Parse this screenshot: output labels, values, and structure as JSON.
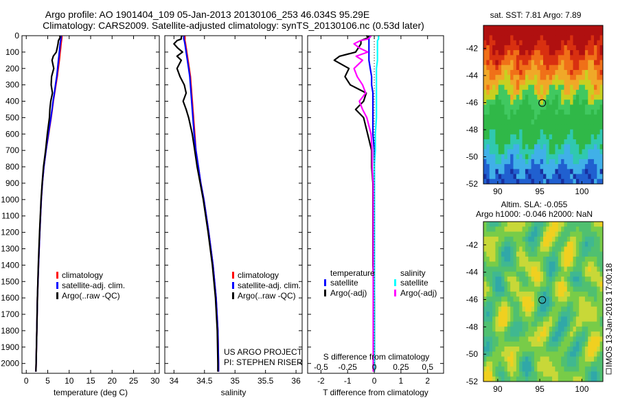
{
  "header": {
    "line1": "Argo profile: AO 1901404_109 05-Jan-2013 20130106_253 46.034S 95.29E",
    "line2": "Climatology: CARS2009. Satellite-adjusted climatology: synTS_20130106.nc (0.53d later)"
  },
  "colors": {
    "climatology": "#ff0000",
    "satellite": "#0000ff",
    "argo": "#000000",
    "sal_satellite": "#00ffff",
    "sal_argo": "#ff00ff"
  },
  "chart_data": [
    {
      "type": "line",
      "id": "temperature",
      "xlabel": "temperature (deg C)",
      "ylabel": "",
      "xlim": [
        -1,
        31
      ],
      "ylim": [
        2060,
        0
      ],
      "x_ticks": [
        "0",
        "5",
        "10",
        "15",
        "20",
        "25",
        "30"
      ],
      "y_ticks": [
        "0",
        "100",
        "200",
        "300",
        "400",
        "500",
        "600",
        "700",
        "800",
        "900",
        "1000",
        "1100",
        "1200",
        "1300",
        "1400",
        "1500",
        "1600",
        "1700",
        "1800",
        "1900",
        "2000"
      ],
      "depth": [
        0,
        10,
        20,
        30,
        50,
        75,
        100,
        125,
        150,
        200,
        250,
        300,
        350,
        400,
        450,
        500,
        600,
        700,
        800,
        900,
        1000,
        1200,
        1400,
        1600,
        1800,
        2000,
        2050
      ],
      "series": [
        {
          "name": "climatology",
          "color": "#ff0000",
          "values": [
            8.3,
            8.3,
            8.25,
            8.2,
            8.1,
            8.0,
            7.9,
            7.8,
            7.7,
            7.45,
            7.2,
            6.9,
            6.6,
            6.3,
            6.05,
            5.8,
            5.2,
            4.6,
            4.1,
            3.75,
            3.5,
            3.15,
            2.85,
            2.6,
            2.45,
            2.3,
            2.25
          ]
        },
        {
          "name": "satellite-adj. clim.",
          "color": "#0000ff",
          "values": [
            8.1,
            8.1,
            8.05,
            8.0,
            7.9,
            7.8,
            7.7,
            7.6,
            7.5,
            7.3,
            7.1,
            6.8,
            6.55,
            6.25,
            6.0,
            5.75,
            5.15,
            4.6,
            4.1,
            3.75,
            3.5,
            3.15,
            2.85,
            2.6,
            2.45,
            2.3,
            2.25
          ]
        },
        {
          "name": "Argo(..raw -QC)",
          "color": "#000000",
          "values": [
            7.8,
            7.9,
            7.7,
            7.5,
            7.4,
            7.2,
            7.0,
            6.3,
            6.0,
            6.4,
            5.9,
            5.8,
            6.1,
            5.7,
            5.5,
            5.4,
            4.9,
            4.5,
            4.0,
            3.7,
            3.45,
            3.1,
            2.8,
            2.6,
            2.45,
            2.3,
            2.25
          ]
        }
      ],
      "legend": {
        "location": "center",
        "entries": [
          "climatology",
          "satellite-adj. clim.",
          "Argo(..raw -QC)"
        ]
      }
    },
    {
      "type": "line",
      "id": "salinity",
      "xlabel": "salinity",
      "ylabel": "",
      "xlim": [
        33.85,
        36.1
      ],
      "ylim": [
        2060,
        0
      ],
      "x_ticks": [
        "34",
        "34.5",
        "35",
        "35.5",
        "36"
      ],
      "depth": [
        0,
        10,
        20,
        30,
        50,
        75,
        100,
        125,
        150,
        200,
        250,
        300,
        350,
        400,
        450,
        500,
        600,
        700,
        800,
        900,
        1000,
        1200,
        1400,
        1600,
        1800,
        2000,
        2050
      ],
      "series": [
        {
          "name": "climatology",
          "color": "#ff0000",
          "values": [
            34.18,
            34.18,
            34.18,
            34.18,
            34.19,
            34.2,
            34.21,
            34.22,
            34.23,
            34.25,
            34.27,
            34.28,
            34.29,
            34.3,
            34.31,
            34.32,
            34.34,
            34.36,
            34.4,
            34.44,
            34.49,
            34.57,
            34.64,
            34.69,
            34.72,
            34.73,
            34.73
          ]
        },
        {
          "name": "satellite-adj. clim.",
          "color": "#0000ff",
          "values": [
            34.16,
            34.16,
            34.16,
            34.17,
            34.18,
            34.19,
            34.2,
            34.21,
            34.22,
            34.24,
            34.26,
            34.27,
            34.28,
            34.29,
            34.3,
            34.31,
            34.33,
            34.36,
            34.4,
            34.44,
            34.49,
            34.57,
            34.64,
            34.69,
            34.72,
            34.73,
            34.73
          ]
        },
        {
          "name": "Argo(..raw -QC)",
          "color": "#000000",
          "values": [
            34.13,
            34.12,
            34.12,
            34.05,
            34.0,
            34.06,
            34.14,
            34.05,
            34.12,
            34.05,
            34.1,
            34.17,
            34.2,
            34.15,
            34.2,
            34.24,
            34.3,
            34.34,
            34.38,
            34.43,
            34.48,
            34.56,
            34.63,
            34.68,
            34.71,
            34.72,
            34.72
          ]
        }
      ],
      "legend": {
        "location": "center",
        "entries": [
          "climatology",
          "satellite-adj. clim.",
          "Argo(..raw -QC)"
        ]
      },
      "annotation": [
        "US ARGO PROJECT",
        "PI: STEPHEN RISER"
      ]
    },
    {
      "type": "line",
      "id": "difference",
      "xlabel": "T difference from climatology",
      "top_label": "S difference from climatology",
      "xlim": [
        -2.5,
        2.6
      ],
      "ylim": [
        2060,
        0
      ],
      "x_ticks": [
        "-2",
        "-1",
        "0",
        "1",
        "2"
      ],
      "s_ticks": [
        "-0.5",
        "-0.25",
        "0",
        "0.25",
        "0.5"
      ],
      "depth": [
        0,
        10,
        20,
        30,
        50,
        75,
        100,
        125,
        150,
        200,
        250,
        300,
        350,
        400,
        450,
        500,
        600,
        700,
        800,
        900,
        1000,
        1200,
        1400,
        1600,
        1800,
        2000,
        2050
      ],
      "series": [
        {
          "name": "temperature satellite",
          "color": "#0000ff",
          "values": [
            -0.2,
            -0.2,
            -0.2,
            -0.2,
            -0.2,
            -0.2,
            -0.2,
            -0.2,
            -0.2,
            -0.15,
            -0.1,
            -0.1,
            -0.05,
            -0.05,
            -0.05,
            -0.05,
            -0.05,
            0,
            0,
            0,
            0,
            0,
            0,
            0,
            0,
            0,
            0
          ]
        },
        {
          "name": "temperature Argo(-adj)",
          "color": "#000000",
          "values": [
            -0.3,
            -0.2,
            -0.35,
            -0.5,
            -0.5,
            -0.6,
            -0.7,
            -1.3,
            -1.5,
            -0.95,
            -1.1,
            -0.9,
            -0.3,
            -0.4,
            -0.7,
            -0.4,
            -0.25,
            -0.1,
            -0.1,
            -0.05,
            -0.05,
            -0.05,
            -0.05,
            0,
            0,
            0,
            0
          ]
        },
        {
          "name": "salinity satellite",
          "color": "#00ffff",
          "values": [
            0.04,
            0.04,
            0.04,
            0.03,
            0.03,
            0.03,
            0.03,
            0.03,
            0.03,
            0.02,
            0.02,
            0.02,
            0.02,
            0.02,
            0.02,
            0.02,
            0.01,
            0.01,
            0,
            0,
            0,
            0,
            0,
            0,
            0,
            0,
            0
          ]
        },
        {
          "name": "salinity Argo(-adj)",
          "color": "#ff00ff",
          "values": [
            -0.03,
            -0.04,
            -0.06,
            -0.13,
            -0.19,
            -0.14,
            -0.06,
            -0.17,
            -0.11,
            -0.19,
            -0.16,
            -0.11,
            -0.08,
            -0.14,
            -0.11,
            -0.07,
            -0.03,
            -0.02,
            -0.02,
            -0.01,
            -0.01,
            -0.01,
            -0.01,
            -0.01,
            -0.01,
            -0.01,
            -0.01
          ]
        }
      ],
      "legend": {
        "temperature_title": "temperature",
        "salinity_title": "salinity",
        "t_entries": [
          "satellite",
          "Argo(-adj)"
        ],
        "s_entries": [
          "satellite",
          "Argo(-adj)"
        ]
      }
    },
    {
      "type": "heatmap",
      "id": "sst_map",
      "title": "sat. SST: 7.81  Argo: 7.89",
      "xlim": [
        88.3,
        102.5
      ],
      "ylim": [
        -52,
        -40.3
      ],
      "x_ticks": [
        "90",
        "95",
        "100"
      ],
      "y_ticks": [
        "-42",
        "-44",
        "-46",
        "-48",
        "-50",
        "-52"
      ],
      "marker": {
        "lon": 95.29,
        "lat": -46.03
      }
    },
    {
      "type": "heatmap",
      "id": "sla_map",
      "title_line1": "Altim. SLA: -0.055",
      "title_line2": "Argo h1000: -0.046 h2000: NaN",
      "xlim": [
        88.3,
        102.5
      ],
      "ylim": [
        -52,
        -40.3
      ],
      "x_ticks": [
        "90",
        "95",
        "100"
      ],
      "y_ticks": [
        "-42",
        "-44",
        "-46",
        "-48",
        "-50",
        "-52"
      ],
      "marker": {
        "lon": 95.29,
        "lat": -46.03
      },
      "side_label": "IMOS 13-Jan-2013 17:00:18"
    }
  ]
}
